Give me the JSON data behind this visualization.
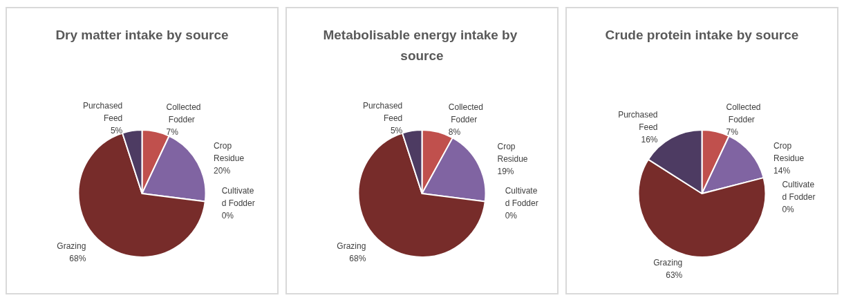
{
  "chart_data": [
    {
      "type": "pie",
      "title": "Dry matter intake by source",
      "categories": [
        "Collected Fodder",
        "Crop Residue",
        "Cultivated Fodder",
        "Grazing",
        "Purchased Feed"
      ],
      "values": [
        7,
        20,
        0,
        68,
        5
      ],
      "value_labels": [
        "7%",
        "20%",
        "0%",
        "68%",
        "5%"
      ],
      "colors": [
        "#c0504d",
        "#8064a2",
        "#4bacc6",
        "#772c2a",
        "#4d3b62"
      ],
      "legend": false
    },
    {
      "type": "pie",
      "title": "Metabolisable energy intake by source",
      "categories": [
        "Collected Fodder",
        "Crop Residue",
        "Cultivated Fodder",
        "Grazing",
        "Purchased Feed"
      ],
      "values": [
        8,
        19,
        0,
        68,
        5
      ],
      "value_labels": [
        "8%",
        "19%",
        "0%",
        "68%",
        "5%"
      ],
      "colors": [
        "#c0504d",
        "#8064a2",
        "#4bacc6",
        "#772c2a",
        "#4d3b62"
      ],
      "legend": false
    },
    {
      "type": "pie",
      "title": "Crude protein intake by source",
      "categories": [
        "Collected Fodder",
        "Crop Residue",
        "Cultivated Fodder",
        "Grazing",
        "Purchased Feed"
      ],
      "values": [
        7,
        14,
        0,
        63,
        16
      ],
      "value_labels": [
        "7%",
        "14%",
        "0%",
        "63%",
        "16%"
      ],
      "colors": [
        "#c0504d",
        "#8064a2",
        "#4bacc6",
        "#772c2a",
        "#4d3b62"
      ],
      "legend": false
    }
  ]
}
